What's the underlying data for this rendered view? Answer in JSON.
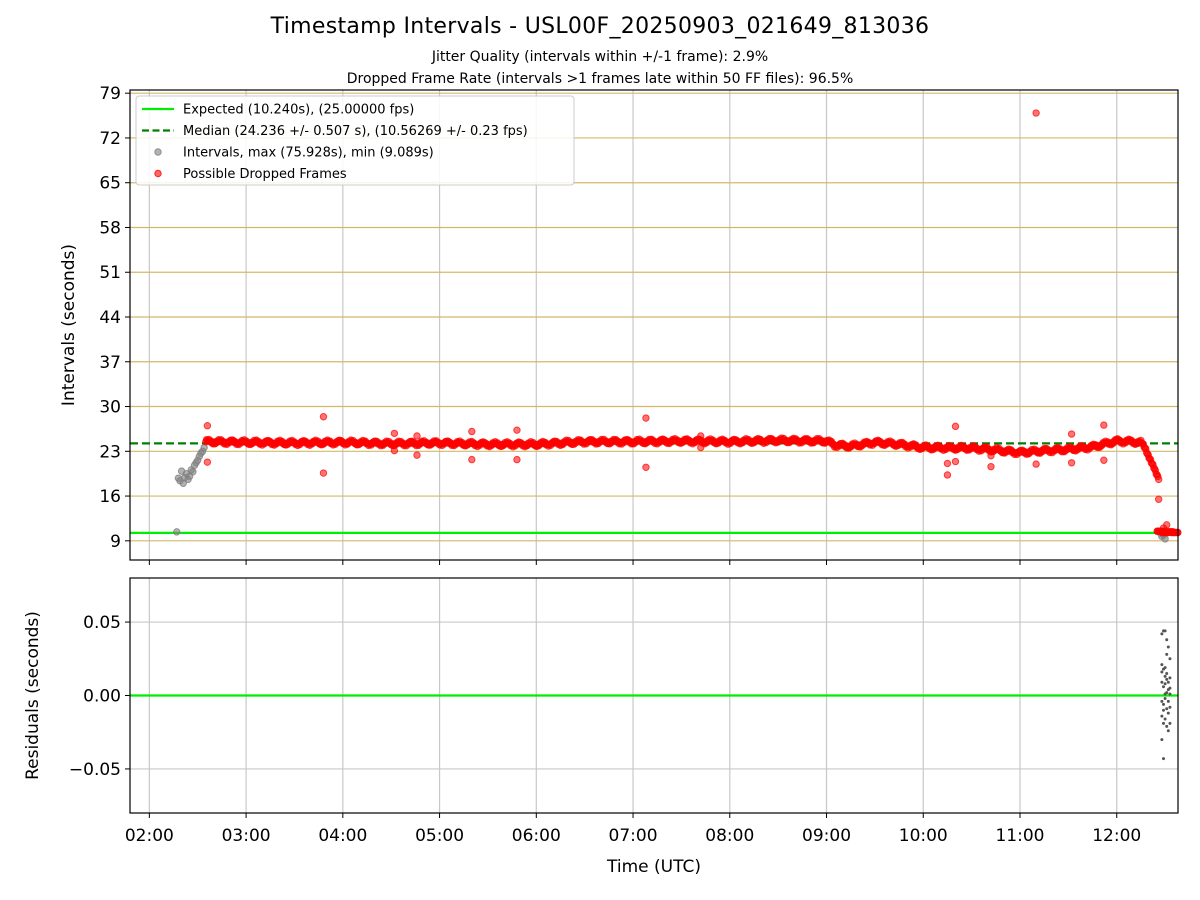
{
  "figure": {
    "title": "Timestamp Intervals - USL00F_20250903_021649_813036",
    "subtitle_jitter": "Jitter Quality (intervals within +/-1 frame): 2.9%",
    "subtitle_dropped": "Dropped Frame Rate (intervals >1 frames late within 50 FF files): 96.5%"
  },
  "colors": {
    "expected": "#00ee00",
    "median": "#008000",
    "intervals": "#808080",
    "dropped": "#ff0000",
    "hgrid_top": "#d4b86a",
    "vgrid": "#c8c8c8"
  },
  "chart_data": [
    {
      "type": "scatter",
      "ylabel": "Intervals (seconds)",
      "ylim": [
        6,
        79.5
      ],
      "xlim": [
        "01:48",
        "12:38"
      ],
      "yticks": [
        "9",
        "16",
        "23",
        "30",
        "37",
        "44",
        "51",
        "58",
        "65",
        "72",
        "79"
      ],
      "grid": true,
      "legend_placement": "upper-left",
      "legend": [
        {
          "label": "Expected (10.240s), (25.00000 fps)",
          "style": "solid-line",
          "color": "#00ee00"
        },
        {
          "label": "Median (24.236 +/- 0.507 s), (10.56269 +/- 0.23 fps)",
          "style": "dashed-line",
          "color": "#008000"
        },
        {
          "label": "Intervals, max (75.928s), min (9.089s)",
          "style": "marker",
          "color": "#808080"
        },
        {
          "label": "Possible Dropped Frames",
          "style": "marker",
          "color": "#ff0000"
        }
      ],
      "lines": [
        {
          "name": "Expected",
          "y": 10.24
        },
        {
          "name": "Median",
          "y": 24.236
        }
      ],
      "series": [
        {
          "name": "Intervals",
          "points": [
            [
              "02:17",
              10.4
            ],
            [
              "02:18",
              18.8
            ],
            [
              "02:19",
              18.4
            ],
            [
              "02:20",
              19.9
            ],
            [
              "02:21",
              18.0
            ],
            [
              "02:22",
              18.9
            ],
            [
              "02:23",
              19.5
            ],
            [
              "02:24",
              18.6
            ],
            [
              "02:25",
              19.1
            ],
            [
              "02:26",
              20.1
            ],
            [
              "02:27",
              19.8
            ],
            [
              "02:28",
              20.8
            ],
            [
              "02:29",
              21.2
            ],
            [
              "02:30",
              21.6
            ],
            [
              "02:31",
              22.2
            ],
            [
              "02:32",
              22.7
            ],
            [
              "02:33",
              23.0
            ],
            [
              "02:34",
              23.6
            ],
            [
              "12:27",
              10.2
            ],
            [
              "12:28",
              9.7
            ],
            [
              "12:29",
              9.9
            ],
            [
              "12:30",
              9.3
            ]
          ]
        },
        {
          "name": "Possible Dropped Frames",
          "baseline": [
            [
              "02:35",
              24.5
            ],
            [
              "03:00",
              24.4
            ],
            [
              "03:30",
              24.3
            ],
            [
              "04:00",
              24.4
            ],
            [
              "04:30",
              24.2
            ],
            [
              "05:00",
              24.3
            ],
            [
              "05:30",
              24.1
            ],
            [
              "06:00",
              24.1
            ],
            [
              "06:30",
              24.5
            ],
            [
              "07:00",
              24.5
            ],
            [
              "07:30",
              24.6
            ],
            [
              "08:00",
              24.5
            ],
            [
              "08:30",
              24.7
            ],
            [
              "09:00",
              24.6
            ],
            [
              "09:05",
              24.0
            ],
            [
              "09:15",
              23.8
            ],
            [
              "09:30",
              24.4
            ],
            [
              "09:45",
              24.1
            ],
            [
              "10:00",
              23.6
            ],
            [
              "10:30",
              23.5
            ],
            [
              "10:45",
              23.2
            ],
            [
              "11:00",
              22.8
            ],
            [
              "11:15",
              23.1
            ],
            [
              "11:30",
              23.3
            ],
            [
              "11:45",
              23.7
            ],
            [
              "12:00",
              24.6
            ],
            [
              "12:10",
              24.5
            ],
            [
              "12:15",
              24.3
            ],
            [
              "12:18",
              23.5
            ],
            [
              "12:20",
              22.2
            ],
            [
              "12:22",
              20.8
            ],
            [
              "12:24",
              19.8
            ],
            [
              "12:26",
              19.0
            ]
          ],
          "outliers": [
            [
              "02:36",
              27.0
            ],
            [
              "02:36",
              21.3
            ],
            [
              "03:48",
              28.4
            ],
            [
              "03:48",
              19.6
            ],
            [
              "04:32",
              25.8
            ],
            [
              "04:32",
              23.1
            ],
            [
              "04:46",
              25.4
            ],
            [
              "04:46",
              22.4
            ],
            [
              "05:20",
              26.1
            ],
            [
              "05:20",
              21.7
            ],
            [
              "05:48",
              26.3
            ],
            [
              "05:48",
              21.7
            ],
            [
              "07:08",
              28.2
            ],
            [
              "07:08",
              20.5
            ],
            [
              "07:42",
              25.4
            ],
            [
              "07:42",
              23.6
            ],
            [
              "10:15",
              19.3
            ],
            [
              "10:15",
              21.1
            ],
            [
              "10:20",
              26.9
            ],
            [
              "10:20",
              21.4
            ],
            [
              "10:42",
              20.6
            ],
            [
              "10:42",
              22.3
            ],
            [
              "11:10",
              75.9
            ],
            [
              "11:10",
              21.0
            ],
            [
              "11:32",
              25.7
            ],
            [
              "11:32",
              21.2
            ],
            [
              "11:52",
              27.1
            ],
            [
              "11:52",
              21.6
            ],
            [
              "12:26",
              15.5
            ],
            [
              "12:29",
              11.0
            ],
            [
              "12:31",
              11.5
            ]
          ],
          "tail": [
            [
              "12:27",
              10.5
            ],
            [
              "12:30",
              10.3
            ],
            [
              "12:33",
              10.4
            ],
            [
              "12:36",
              10.3
            ]
          ]
        }
      ]
    },
    {
      "type": "scatter",
      "ylabel": "Residuals (seconds)",
      "xlabel": "Time (UTC)",
      "ylim": [
        -0.08,
        0.08
      ],
      "xlim": [
        "01:48",
        "12:38"
      ],
      "yticks": [
        "0.05",
        "0.00",
        "−0.05"
      ],
      "xticks": [
        "02:00",
        "03:00",
        "04:00",
        "05:00",
        "06:00",
        "07:00",
        "08:00",
        "09:00",
        "10:00",
        "11:00",
        "12:00"
      ],
      "grid": true,
      "lines": [
        {
          "name": "Zero",
          "y": 0.0
        }
      ],
      "series": [
        {
          "name": "Residuals",
          "points": [
            [
              "12:28",
              0.042
            ],
            [
              "12:29",
              0.044
            ],
            [
              "12:30",
              0.044
            ],
            [
              "12:31",
              0.038
            ],
            [
              "12:32",
              0.033
            ],
            [
              "12:33",
              0.025
            ],
            [
              "12:28",
              0.021
            ],
            [
              "12:29",
              0.018
            ],
            [
              "12:30",
              0.019
            ],
            [
              "12:31",
              0.011
            ],
            [
              "12:32",
              0.009
            ],
            [
              "12:33",
              0.005
            ],
            [
              "12:28",
              0.009
            ],
            [
              "12:29",
              0.006
            ],
            [
              "12:30",
              0.008
            ],
            [
              "12:31",
              0.002
            ],
            [
              "12:32",
              0.004
            ],
            [
              "12:33",
              0.001
            ],
            [
              "12:28",
              -0.004
            ],
            [
              "12:29",
              -0.006
            ],
            [
              "12:30",
              -0.002
            ],
            [
              "12:31",
              -0.009
            ],
            [
              "12:32",
              -0.012
            ],
            [
              "12:33",
              -0.008
            ],
            [
              "12:28",
              -0.014
            ],
            [
              "12:29",
              -0.019
            ],
            [
              "12:30",
              -0.016
            ],
            [
              "12:31",
              -0.021
            ],
            [
              "12:32",
              -0.024
            ],
            [
              "12:33",
              -0.019
            ],
            [
              "12:28",
              -0.03
            ],
            [
              "12:29",
              -0.043
            ],
            [
              "12:30",
              0.013
            ],
            [
              "12:31",
              0.028
            ],
            [
              "12:32",
              -0.004
            ],
            [
              "12:28",
              0.016
            ],
            [
              "12:29",
              -0.01
            ],
            [
              "12:30",
              0.001
            ],
            [
              "12:31",
              0.015
            ],
            [
              "12:33",
              0.012
            ]
          ]
        }
      ]
    }
  ]
}
